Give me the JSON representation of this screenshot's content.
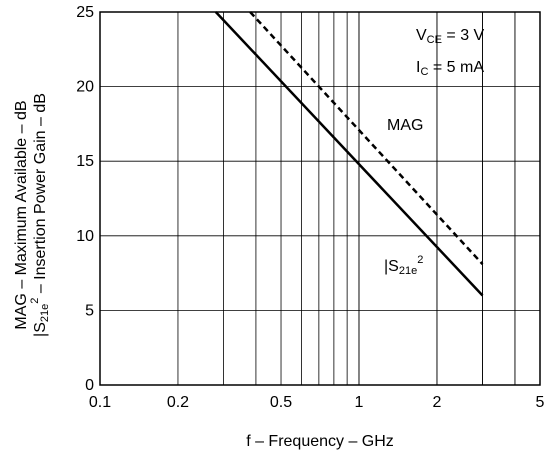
{
  "chart_data": {
    "type": "line",
    "xscale": "log",
    "xlim": [
      0.1,
      5
    ],
    "ylim": [
      0,
      25
    ],
    "grid": true,
    "xlabel": "f – Frequency – GHz",
    "ylabel_line1": "MAG – Maximum Available – dB",
    "ylabel_line2_pre": "|S",
    "ylabel_line2_sub": "21e",
    "ylabel_line2_sup": "2",
    "ylabel_line2_post": " – Insertion Power Gain – dB",
    "x_ticks": [
      0.1,
      0.2,
      0.5,
      1,
      2,
      5
    ],
    "x_tick_labels": [
      "0.1",
      "0.2",
      "0.5",
      "1",
      "2",
      "5"
    ],
    "y_ticks": [
      0,
      5,
      10,
      15,
      20,
      25
    ],
    "y_tick_labels": [
      "0",
      "5",
      "10",
      "15",
      "20",
      "25"
    ],
    "conditions": {
      "vce_main": "V",
      "vce_sub": "CE",
      "vce_value": " = 3 V",
      "ic_main": "I",
      "ic_sub": "C",
      "ic_value": " = 5 mA"
    },
    "series": [
      {
        "label_main": "MAG",
        "style": "dashed",
        "x": [
          0.38,
          3.0
        ],
        "y": [
          25,
          8.1
        ]
      },
      {
        "label_main": "|S",
        "label_sub": "21e",
        "label_sup": "2",
        "style": "solid",
        "x": [
          0.28,
          3.0
        ],
        "y": [
          25,
          6
        ]
      }
    ],
    "colors": {
      "line": "#000000",
      "background": "#ffffff"
    }
  }
}
